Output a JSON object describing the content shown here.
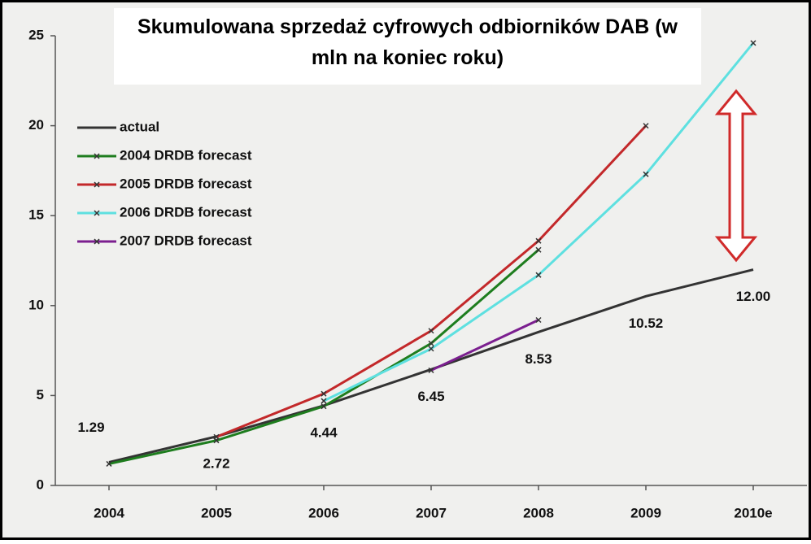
{
  "chart_data": {
    "type": "line",
    "title": "Skumulowana sprzedaż cyfrowych odbiorników DAB (w mln na koniec roku)",
    "categories": [
      "2004",
      "2005",
      "2006",
      "2007",
      "2008",
      "2009",
      "2010e"
    ],
    "ylim": [
      0,
      25
    ],
    "yticks": [
      0,
      5,
      10,
      15,
      20,
      25
    ],
    "legend": "upper left",
    "series": [
      {
        "name": "actual",
        "color": "#333333",
        "values": [
          1.29,
          2.72,
          4.44,
          6.45,
          8.53,
          10.52,
          12.0
        ],
        "value_labels": [
          "1.29",
          "2.72",
          "4.44",
          "6.45",
          "8.53",
          "10.52",
          "12.00"
        ]
      },
      {
        "name": "2004 DRDB forecast",
        "color": "#1e7d1e",
        "values": [
          1.2,
          2.5,
          4.4,
          7.9,
          13.1,
          null,
          null
        ]
      },
      {
        "name": "2005 DRDB forecast",
        "color": "#c3282a",
        "values": [
          null,
          2.7,
          5.1,
          8.6,
          13.6,
          20.0,
          null
        ]
      },
      {
        "name": "2006 DRDB forecast",
        "color": "#5ee0e0",
        "values": [
          null,
          null,
          4.7,
          7.6,
          11.7,
          17.3,
          24.6
        ]
      },
      {
        "name": "2007 DRDB forecast",
        "color": "#7b1f8f",
        "values": [
          null,
          null,
          null,
          6.4,
          9.2,
          null,
          null
        ]
      }
    ]
  }
}
